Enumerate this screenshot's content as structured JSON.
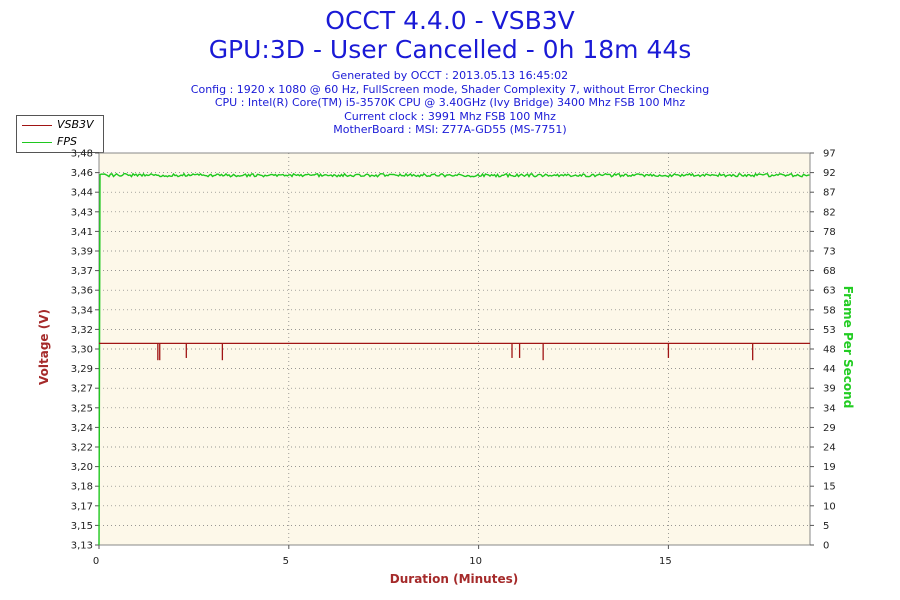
{
  "header": {
    "title": "OCCT 4.4.0 - VSB3V",
    "subtitle": "GPU:3D - User Cancelled - 0h 18m 44s",
    "info_lines": [
      "Generated by OCCT : 2013.05.13 16:45:02",
      "Config : 1920 x 1080 @ 60 Hz, FullScreen mode, Shader Complexity 7, without Error Checking",
      "CPU : Intel(R) Core(TM) i5-3570K CPU @ 3.40GHz (Ivy Bridge) 3400 Mhz FSB 100 Mhz",
      "Current clock : 3991 Mhz FSB 100 Mhz",
      "MotherBoard : MSI: Z77A-GD55 (MS-7751)"
    ]
  },
  "colors": {
    "voltage": "#a01414",
    "fps": "#1fc81f",
    "plot_bg": "#fdf8e9",
    "axis_label_left": "#a52a2a",
    "axis_label_right": "#22cc22",
    "title": "#1a1ad6"
  },
  "chart_data": {
    "type": "line",
    "xlabel": "Duration (Minutes)",
    "ylabel": "Voltage (V)",
    "ylabel_right": "Frame Per Second",
    "xlim": [
      0,
      18.73
    ],
    "ylim": [
      3.13,
      3.48
    ],
    "ylim_right": [
      0,
      97
    ],
    "x_ticks": [
      "0",
      "5",
      "10",
      "15"
    ],
    "y_ticks": [
      "3,13",
      "3,15",
      "3,17",
      "3,18",
      "3,20",
      "3,22",
      "3,24",
      "3,25",
      "3,27",
      "3,29",
      "3,30",
      "3,32",
      "3,34",
      "3,36",
      "3,37",
      "3,39",
      "3,41",
      "3,43",
      "3,44",
      "3,46",
      "3,48"
    ],
    "y_ticks_right": [
      "0",
      "5",
      "10",
      "15",
      "19",
      "24",
      "29",
      "34",
      "39",
      "44",
      "48",
      "53",
      "58",
      "63",
      "68",
      "73",
      "78",
      "82",
      "87",
      "92",
      "97"
    ],
    "grid": true,
    "legend": "top-left",
    "series": [
      {
        "name": "VSB3V",
        "axis": "left",
        "baseline": 3.31,
        "dips": [
          {
            "x": 1.55,
            "value": 3.295
          },
          {
            "x": 1.6,
            "value": 3.295
          },
          {
            "x": 2.3,
            "value": 3.297
          },
          {
            "x": 3.25,
            "value": 3.295
          },
          {
            "x": 10.88,
            "value": 3.297
          },
          {
            "x": 11.08,
            "value": 3.297
          },
          {
            "x": 11.7,
            "value": 3.295
          },
          {
            "x": 15.0,
            "value": 3.297
          },
          {
            "x": 17.22,
            "value": 3.295
          }
        ]
      },
      {
        "name": "FPS",
        "axis": "right",
        "start_value": 0,
        "steady_value": 91.5
      }
    ]
  }
}
